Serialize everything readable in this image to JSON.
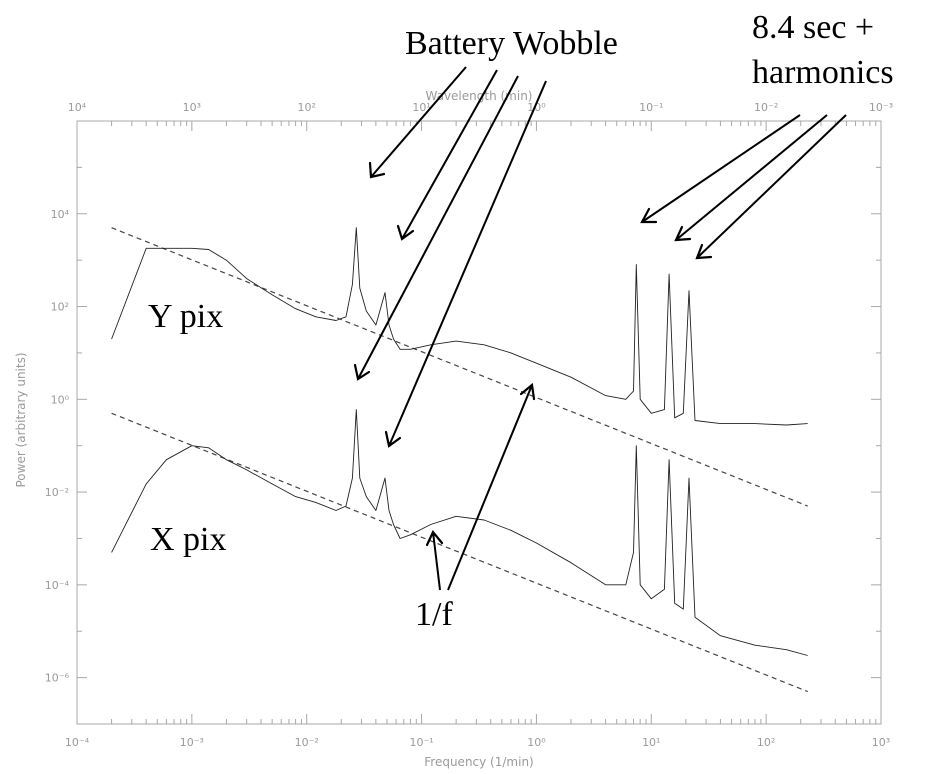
{
  "chart_data": {
    "type": "line",
    "title": "",
    "xlabel": "Frequency (1/min)",
    "x2label": "Wavelength (min)",
    "ylabel": "Power (arbitrary units)",
    "xscale": "log",
    "yscale": "log",
    "xlim": [
      0.0001,
      1000
    ],
    "x2lim": [
      10000,
      0.001
    ],
    "ylim": [
      1e-07,
      1000000
    ],
    "grid": false,
    "x_ticks": [
      "10⁻⁴",
      "10⁻³",
      "10⁻²",
      "10⁻¹",
      "10⁰",
      "10¹",
      "10²",
      "10³"
    ],
    "x2_ticks": [
      "10⁴",
      "10³",
      "10²",
      "10¹",
      "10⁰",
      "10⁻¹",
      "10⁻²",
      "10⁻³"
    ],
    "y_ticks": [
      "10⁴",
      "10²",
      "10⁰",
      "10⁻²",
      "10⁻⁴",
      "10⁻⁶"
    ],
    "series": [
      {
        "name": "Y pix",
        "x": [
          0.0002,
          0.0004,
          0.0006,
          0.001,
          0.0014,
          0.002,
          0.003,
          0.005,
          0.008,
          0.012,
          0.018,
          0.022,
          0.025,
          0.027,
          0.029,
          0.033,
          0.04,
          0.048,
          0.052,
          0.057,
          0.065,
          0.08,
          0.12,
          0.2,
          0.35,
          0.6,
          1.0,
          2.0,
          4.0,
          6.0,
          7.0,
          7.4,
          8.0,
          10.0,
          13.0,
          14.3,
          16.0,
          19.0,
          21.3,
          24.0,
          40.0,
          80.0,
          150.0,
          230.0
        ],
        "y": [
          20,
          1800,
          1800,
          1800,
          1700,
          1000,
          400,
          180,
          90,
          60,
          50,
          60,
          300,
          5000,
          250,
          80,
          40,
          200,
          40,
          20,
          12,
          12,
          15,
          18,
          15,
          10,
          6,
          3,
          1.2,
          1.0,
          1.5,
          800,
          1.0,
          0.5,
          0.6,
          500,
          0.4,
          0.5,
          220,
          0.35,
          0.3,
          0.3,
          0.28,
          0.3
        ]
      },
      {
        "name": "X pix",
        "x": [
          0.0002,
          0.0004,
          0.0006,
          0.001,
          0.0014,
          0.002,
          0.003,
          0.005,
          0.008,
          0.012,
          0.018,
          0.022,
          0.025,
          0.027,
          0.029,
          0.033,
          0.04,
          0.048,
          0.052,
          0.057,
          0.065,
          0.08,
          0.12,
          0.2,
          0.35,
          0.6,
          1.0,
          2.0,
          4.0,
          6.0,
          7.0,
          7.4,
          8.0,
          10.0,
          13.0,
          14.3,
          16.0,
          19.0,
          21.3,
          24.0,
          40.0,
          80.0,
          150.0,
          230.0
        ],
        "y": [
          0.0005,
          0.015,
          0.05,
          0.1,
          0.09,
          0.05,
          0.03,
          0.015,
          0.008,
          0.006,
          0.004,
          0.005,
          0.02,
          0.6,
          0.02,
          0.008,
          0.004,
          0.02,
          0.004,
          0.002,
          0.001,
          0.0012,
          0.002,
          0.003,
          0.0025,
          0.0015,
          0.0008,
          0.0003,
          0.0001,
          0.0001,
          0.0005,
          0.1,
          0.0001,
          5e-05,
          8e-05,
          0.05,
          4e-05,
          3e-05,
          0.02,
          2e-05,
          8e-06,
          5e-06,
          4e-06,
          3e-06
        ]
      }
    ],
    "fit_lines": [
      {
        "label": "1/f",
        "x": [
          0.0002,
          230
        ],
        "y": [
          5000,
          0.005
        ]
      },
      {
        "label": "1/f",
        "x": [
          0.0002,
          230
        ],
        "y": [
          0.5,
          5e-07
        ]
      }
    ],
    "annotations": {
      "battery": "Battery Wobble",
      "harmonics_line1": "8.4 sec +",
      "harmonics_line2": "harmonics",
      "ypix": "Y pix",
      "xpix": "X pix",
      "oneoverf": "1/f"
    }
  }
}
